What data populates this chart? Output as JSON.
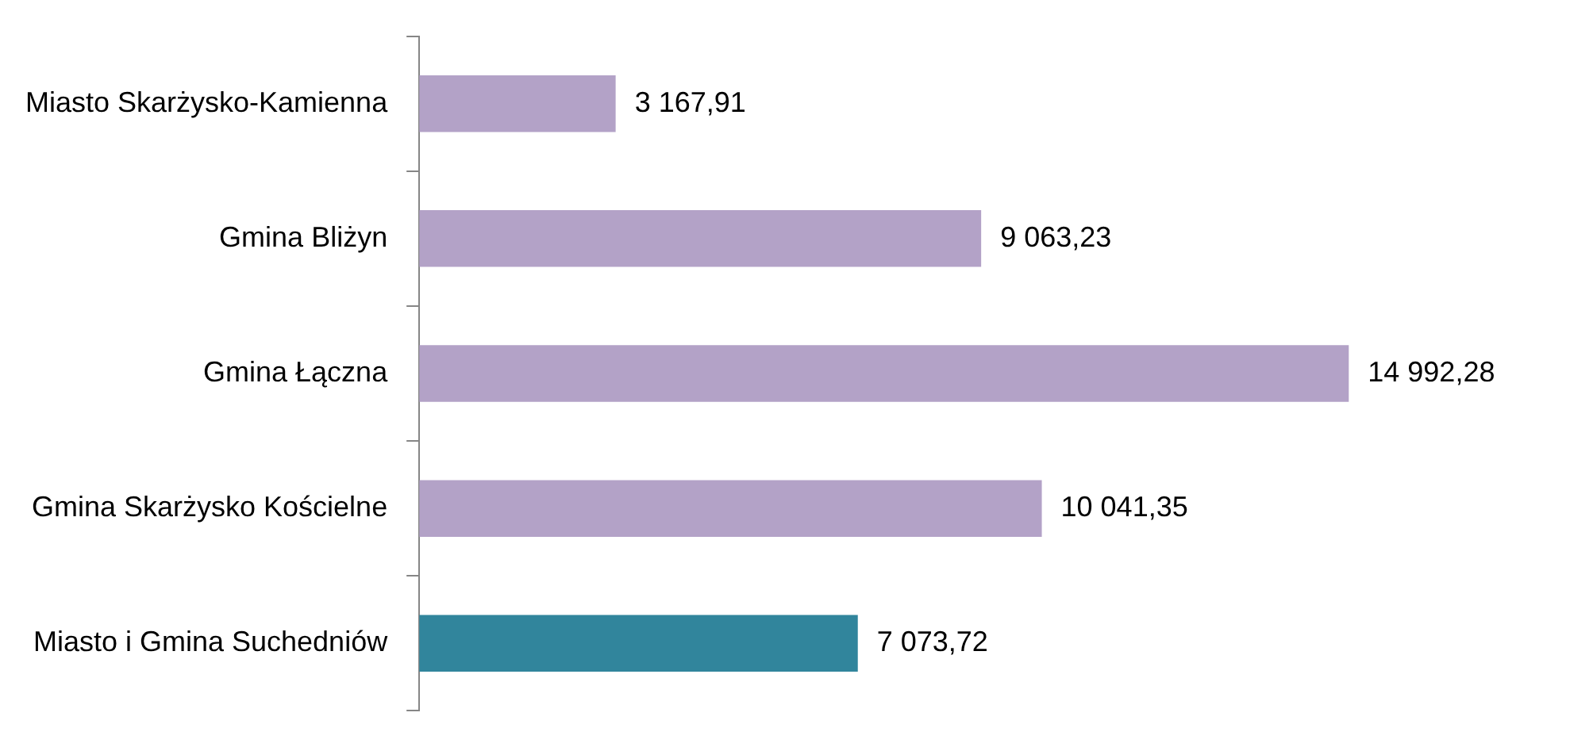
{
  "chart_data": {
    "type": "bar",
    "orientation": "horizontal",
    "tick_labels": "y",
    "categories": [
      "Miasto Skarżysko-Kamienna",
      "Gmina Bliżyn",
      "Gmina Łączna",
      "Gmina Skarżysko Kościelne",
      "Miasto i Gmina Suchedniów"
    ],
    "values": [
      3167.91,
      9063.23,
      14992.28,
      10041.35,
      7073.72
    ],
    "colors": [
      "#b3a2c7",
      "#b3a2c7",
      "#b3a2c7",
      "#b3a2c7",
      "#31859c"
    ],
    "value_labels": [
      "3 167,91",
      "9 063,23",
      "14 992,28",
      "10 041,35",
      "7 073,72"
    ]
  }
}
